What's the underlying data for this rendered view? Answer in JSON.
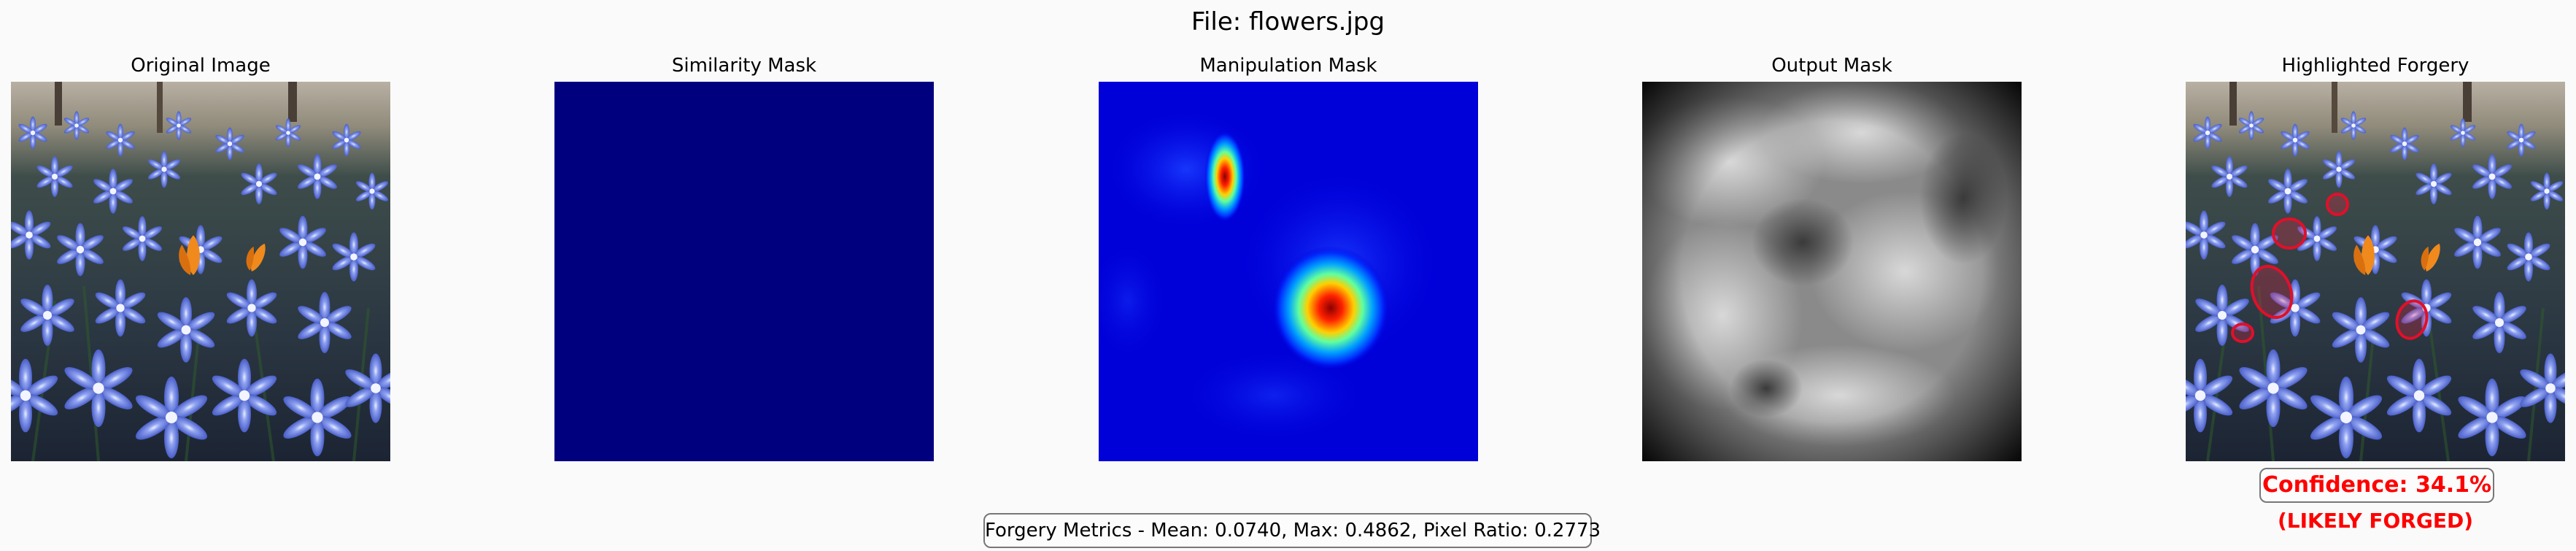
{
  "title": "File: flowers.jpg",
  "panels": [
    {
      "title": "Original Image"
    },
    {
      "title": "Similarity Mask"
    },
    {
      "title": "Manipulation Mask"
    },
    {
      "title": "Output Mask"
    },
    {
      "title": "Highlighted Forgery"
    }
  ],
  "confidence": "Confidence: 34.1%",
  "verdict": "(LIKELY FORGED)",
  "metrics": "Forgery Metrics - Mean: 0.0740, Max: 0.4862, Pixel Ratio: 0.2773",
  "colors": {
    "alert": "#ff0000",
    "similarity_fill": "#00007f",
    "flower_blue": "#6e86e6",
    "crocus_orange": "#f08a1c"
  },
  "icons": [
    "flower-photo",
    "forgery-circle-marker"
  ]
}
